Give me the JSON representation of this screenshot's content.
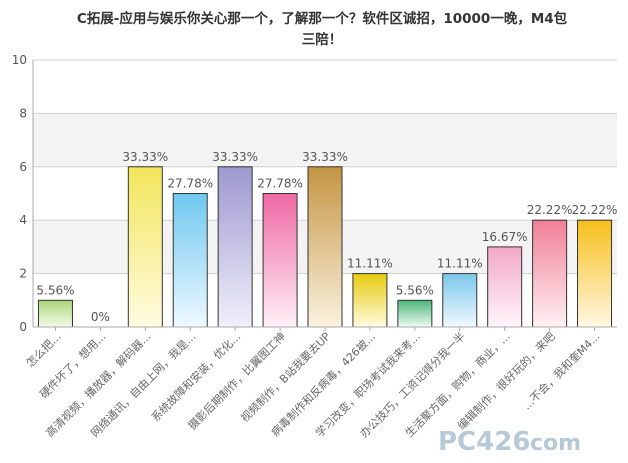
{
  "chart_data": {
    "type": "bar",
    "title_lines": [
      "C拓展-应用与娱乐你关心那一个，了解那一个？软件区诚招，10000一晚，M4包",
      "三陪！"
    ],
    "ylim": [
      0,
      10
    ],
    "yticks": [
      0,
      2,
      4,
      6,
      8,
      10
    ],
    "grid": true,
    "categories": [
      "怎么把...",
      "硬件坏了，想用...",
      "高清视频，播放器，解码器...",
      "网络通讯，自由上网，我是...",
      "系统故障和安装，优化...",
      "摄影后期制作，比翼图工神",
      "视频制作，B站我要去UP",
      "病毒制作和反病毒，426被...",
      "学习改变，职场考试我来考...",
      "办公技巧，工资记得分我一半",
      "生活聚方面，购物，商业，...",
      "编辑制作，很好玩的，来吧",
      "...不会，我和奎M4..."
    ],
    "values": [
      1,
      0,
      6,
      5,
      6,
      5,
      6,
      2,
      1,
      2,
      3,
      4,
      4
    ],
    "data_labels": [
      "5.56%",
      "0%",
      "33.33%",
      "27.78%",
      "33.33%",
      "27.78%",
      "33.33%",
      "11.11%",
      "5.56%",
      "11.11%",
      "16.67%",
      "22.22%",
      "22.22%"
    ],
    "bar_colors": [
      [
        "#f4fbea",
        "#a9d67a"
      ],
      [
        "#ffffff",
        "#d8d8d8"
      ],
      [
        "#fffbe0",
        "#f2e65a"
      ],
      [
        "#eef9ff",
        "#6fc7ee"
      ],
      [
        "#f1effa",
        "#9d98cf"
      ],
      [
        "#fff0f6",
        "#ee68a5"
      ],
      [
        "#fbf2df",
        "#c39542"
      ],
      [
        "#fffbe0",
        "#e6cb0f"
      ],
      [
        "#eefaf1",
        "#4bb57a"
      ],
      [
        "#f0f9ff",
        "#7cc7ea"
      ],
      [
        "#fff5fa",
        "#f2a8c8"
      ],
      [
        "#fff1f4",
        "#f07f97"
      ],
      [
        "#fff8e4",
        "#f6bf1b"
      ]
    ]
  },
  "watermark": {
    "text": "PC426",
    "suffix": "com"
  }
}
